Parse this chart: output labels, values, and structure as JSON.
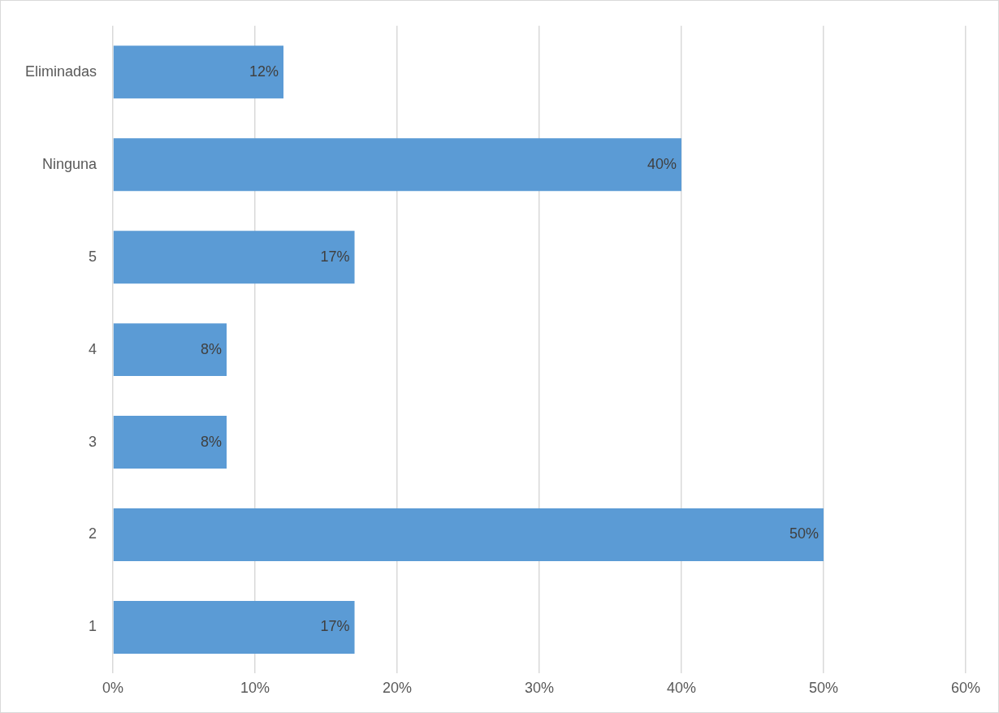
{
  "chart_data": {
    "type": "bar",
    "orientation": "horizontal",
    "categories": [
      "Eliminadas",
      "Ninguna",
      "5",
      "4",
      "3",
      "2",
      "1"
    ],
    "values": [
      12,
      40,
      17,
      8,
      8,
      50,
      17
    ],
    "value_labels": [
      "12%",
      "40%",
      "17%",
      "8%",
      "8%",
      "50%",
      "17%"
    ],
    "color": "#5b9bd5",
    "xlim": [
      0,
      60
    ],
    "xticks": [
      {
        "value": 0,
        "label": "0%"
      },
      {
        "value": 10,
        "label": "10%"
      },
      {
        "value": 20,
        "label": "20%"
      },
      {
        "value": 30,
        "label": "30%"
      },
      {
        "value": 40,
        "label": "40%"
      },
      {
        "value": 50,
        "label": "50%"
      },
      {
        "value": 60,
        "label": "60%"
      }
    ],
    "grid": "x",
    "legend": false
  }
}
